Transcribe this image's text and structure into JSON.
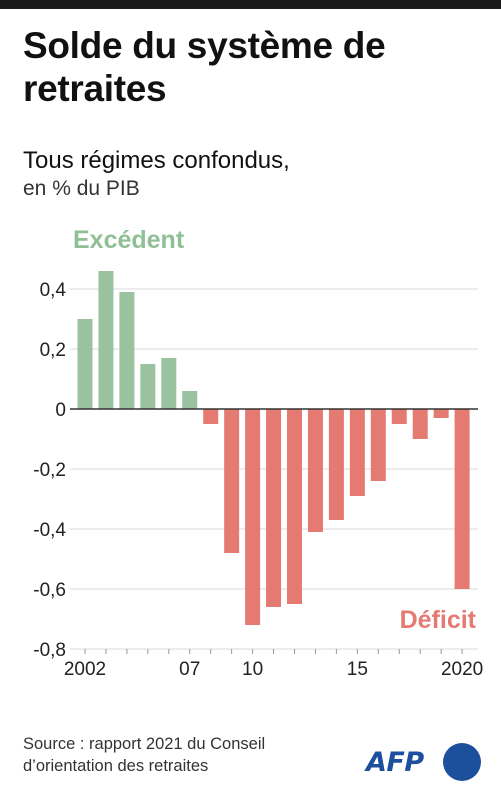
{
  "title": "Solde du système de retraites",
  "subtitle_line1": "Tous régimes confondus,",
  "subtitle_line2": "en % du PIB",
  "source": "Source : rapport 2021 du Conseil d’orientation des retraites",
  "logo_text": "AFP",
  "colors": {
    "positive": "#9bc29f",
    "negative": "#e57a73",
    "label_positive": "#8fbf95",
    "label_negative": "#e57a73",
    "logo": "#1c4f9c"
  },
  "chart_data": {
    "type": "bar",
    "unit": "en % du PIB",
    "x": [
      2002,
      2003,
      2004,
      2005,
      2006,
      2007,
      2008,
      2009,
      2010,
      2011,
      2012,
      2013,
      2014,
      2015,
      2016,
      2017,
      2018,
      2019,
      2020
    ],
    "values": [
      0.3,
      0.46,
      0.39,
      0.15,
      0.17,
      0.06,
      -0.05,
      -0.48,
      -0.72,
      -0.66,
      -0.65,
      -0.41,
      -0.37,
      -0.29,
      -0.24,
      -0.05,
      -0.1,
      -0.03,
      -0.6
    ],
    "x_tick_labels": [
      {
        "x": 2002,
        "label": "2002"
      },
      {
        "x": 2007,
        "label": "07"
      },
      {
        "x": 2010,
        "label": "10"
      },
      {
        "x": 2015,
        "label": "15"
      },
      {
        "x": 2020,
        "label": "2020"
      }
    ],
    "y_ticks": [
      0.4,
      0.2,
      0,
      -0.2,
      -0.4,
      -0.6,
      -0.8
    ],
    "y_tick_labels": [
      "0,4",
      "0,2",
      "0",
      "-0,2",
      "-0,4",
      "-0,6",
      "-0,8"
    ],
    "ylim": [
      -0.8,
      0.5
    ],
    "grid": true,
    "annotations": {
      "positive_label": "Excédent",
      "negative_label": "Déficit"
    }
  }
}
